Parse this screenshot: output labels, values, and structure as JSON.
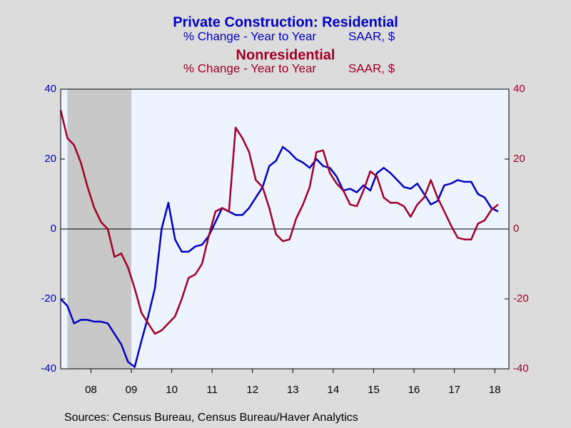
{
  "chart_data": {
    "type": "line",
    "title": "Private Construction: Residential",
    "subtitle": [
      "% Change - Year to Year",
      "SAAR, $"
    ],
    "title2": "Nonresidential",
    "subtitle2": [
      "% Change - Year to Year",
      "SAAR, $"
    ],
    "source": "Sources:  Census Bureau, Census Bureau/Haver Analytics",
    "x": [
      2007.75,
      2007.917,
      2008.083,
      2008.25,
      2008.417,
      2008.583,
      2008.75,
      2008.917,
      2009.083,
      2009.25,
      2009.417,
      2009.583,
      2009.75,
      2009.917,
      2010.083,
      2010.25,
      2010.417,
      2010.583,
      2010.75,
      2010.917,
      2011.083,
      2011.25,
      2011.417,
      2011.583,
      2011.75,
      2011.917,
      2012.083,
      2012.25,
      2012.417,
      2012.583,
      2012.75,
      2012.917,
      2013.083,
      2013.25,
      2013.417,
      2013.583,
      2013.75,
      2013.917,
      2014.083,
      2014.25,
      2014.417,
      2014.583,
      2014.75,
      2014.917,
      2015.083,
      2015.25,
      2015.417,
      2015.583,
      2015.75,
      2015.917,
      2016.083,
      2016.25,
      2016.417,
      2016.583,
      2016.75,
      2016.917,
      2017.083,
      2017.25,
      2017.417,
      2017.583,
      2017.75,
      2017.917,
      2018.083,
      2018.25,
      2018.417,
      2018.583
    ],
    "series": [
      {
        "name": "Residential",
        "color": "#0000c0",
        "values": [
          -20,
          -22,
          -27,
          -26,
          -26,
          -26.5,
          -26.5,
          -27,
          -30,
          -33,
          -38,
          -39.5,
          -32,
          -25,
          -17,
          0,
          7.5,
          -3,
          -6.5,
          -6.5,
          -5,
          -4.5,
          -2,
          2,
          6,
          5,
          4,
          4,
          6,
          9,
          12,
          18,
          19.5,
          23.5,
          22,
          20,
          19,
          17.5,
          20,
          18,
          17.5,
          15,
          11,
          11.5,
          10.5,
          12.5,
          11,
          16,
          17.5,
          16,
          14,
          12,
          11.5,
          13,
          10,
          7,
          8,
          12.5,
          13,
          14,
          13.5,
          13.5,
          10,
          9,
          6,
          5
        ]
      },
      {
        "name": "Nonresidential",
        "color": "#a00028",
        "axis": "y2",
        "values": [
          34,
          26,
          24,
          19,
          12,
          6,
          2,
          0,
          -8,
          -7,
          -11,
          -17,
          -24,
          -27,
          -30,
          -29,
          -27,
          -25,
          -20,
          -14,
          -13,
          -10,
          -2,
          5,
          6,
          5,
          29,
          26,
          22,
          14,
          12,
          6,
          -1.5,
          -3.5,
          -3,
          3,
          7,
          12,
          22,
          22.5,
          16,
          13,
          11,
          7,
          6.5,
          11,
          16.5,
          15,
          9,
          7.5,
          7.5,
          6.5,
          3.5,
          7,
          9,
          14,
          9,
          5,
          1,
          -2.5,
          -3,
          -3,
          1.5,
          2.5,
          5.5,
          7
        ]
      }
    ],
    "recession": [
      2007.917,
      2009.5
    ],
    "xlim": [
      2007.75,
      2018.85
    ],
    "xticks": [
      {
        "value": 2008.5,
        "label": "08"
      },
      {
        "value": 2009.5,
        "label": "09"
      },
      {
        "value": 2010.5,
        "label": "10"
      },
      {
        "value": 2011.5,
        "label": "11"
      },
      {
        "value": 2012.5,
        "label": "12"
      },
      {
        "value": 2013.5,
        "label": "13"
      },
      {
        "value": 2014.5,
        "label": "14"
      },
      {
        "value": 2015.5,
        "label": "15"
      },
      {
        "value": 2016.5,
        "label": "16"
      },
      {
        "value": 2017.5,
        "label": "17"
      },
      {
        "value": 2018.5,
        "label": "18"
      }
    ],
    "ylim": [
      -40,
      40
    ],
    "yticks": [
      -40,
      -20,
      0,
      20,
      40
    ],
    "y2lim": [
      -40,
      40
    ],
    "y2ticks": [
      -40,
      -20,
      0,
      20,
      40
    ]
  }
}
